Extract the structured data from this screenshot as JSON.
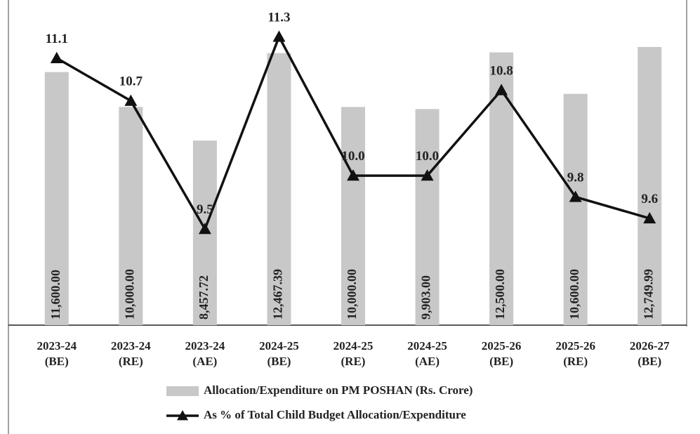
{
  "chart_data": {
    "type": "bar-line",
    "categories": [
      "2023-24 (BE)",
      "2023-24 (RE)",
      "2023-24 (AE)",
      "2024-25 (BE)",
      "2024-25 (RE)",
      "2024-25 (AE)",
      "2025-26 (BE)",
      "2025-26 (RE)",
      "2026-27 (BE)"
    ],
    "series": [
      {
        "name": "Allocation/Expenditure on PM POSHAN (Rs. Crore)",
        "type": "bar",
        "color": "#c8c8c8",
        "values": [
          11600.0,
          10000.0,
          8457.72,
          12467.39,
          10000.0,
          9903.0,
          12500.0,
          10600.0,
          12749.99
        ],
        "value_labels": [
          "11,600.00",
          "10,000.00",
          "8,457.72",
          "12,467.39",
          "10,000.00",
          "9,903.00",
          "12,500.00",
          "10,600.00",
          "12,749.99"
        ]
      },
      {
        "name": "As % of Total Child Budget Allocation/Expenditure",
        "type": "line",
        "color": "#111111",
        "axis": "y2",
        "values": [
          11.1,
          10.7,
          9.5,
          11.3,
          10.0,
          10.0,
          10.8,
          9.8,
          9.6
        ],
        "value_labels": [
          "11.1",
          "10.7",
          "9.5",
          "11.3",
          "10.0",
          "10.0",
          "10.8",
          "9.8",
          "9.6"
        ]
      }
    ],
    "ylim": [
      0,
      14000
    ],
    "y2lim": [
      8.6,
      11.46
    ]
  }
}
